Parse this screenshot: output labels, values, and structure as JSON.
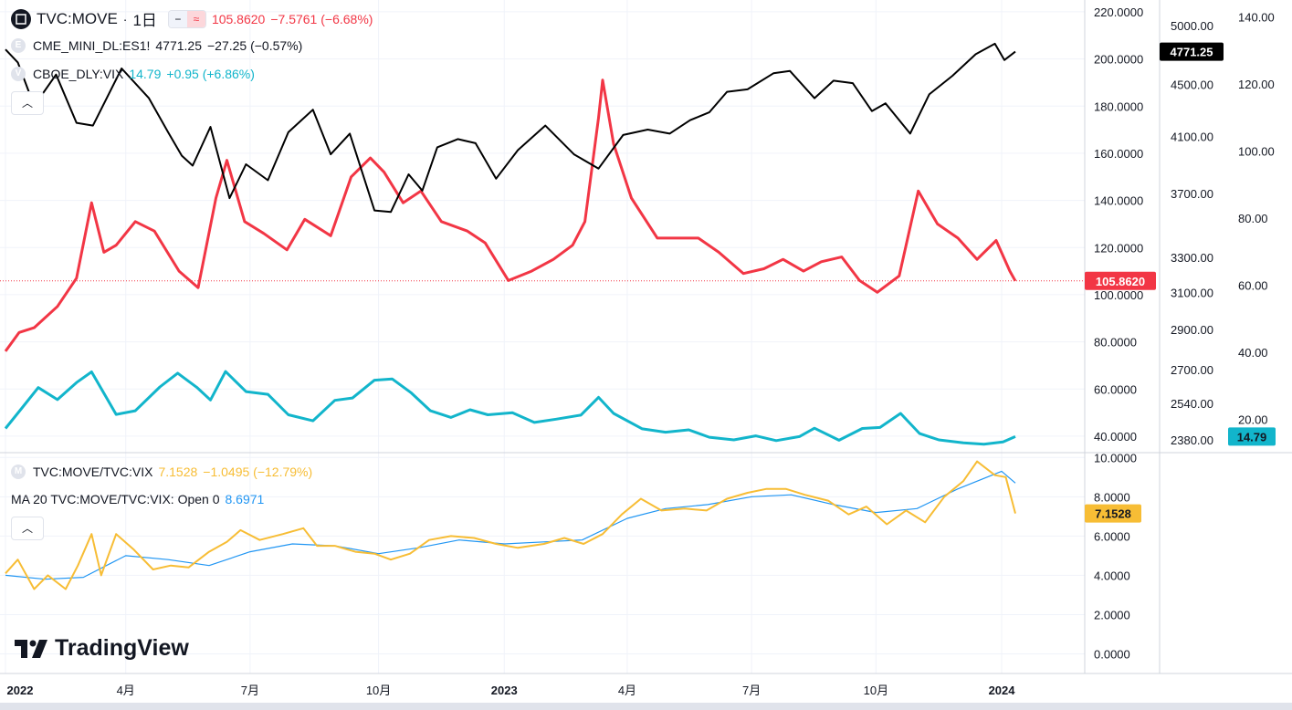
{
  "colors": {
    "move": "#f23645",
    "es": "#000000",
    "vix": "#12b5cb",
    "ratio": "#f7bd35",
    "ma": "#2196f3",
    "grid": "#f0f3fa",
    "axis_text": "#131722"
  },
  "legend": {
    "main_symbol": "TVC:MOVE",
    "interval": "1日",
    "move_value": "105.8620",
    "move_change": "−7.5761 (−6.68%)",
    "es_symbol": "CME_MINI_DL:ES1!",
    "es_value": "4771.25",
    "es_change": "−27.25 (−0.57%)",
    "vix_symbol": "CBOE_DLY:VIX",
    "vix_value": "14.79",
    "vix_change": "+0.95 (+6.86%)",
    "ratio_symbol": "TVC:MOVE/TVC:VIX",
    "ratio_value": "7.1528",
    "ratio_change": "−1.0495 (−12.79%)",
    "ma_label": "MA 20 TVC:MOVE/TVC:VIX: Open 0",
    "ma_value": "8.6971",
    "icon_es": "E",
    "icon_vix": "V",
    "icon_ratio": "M"
  },
  "branding": {
    "logo_text": "TradingView"
  },
  "chart_data": [
    {
      "type": "line",
      "title": "",
      "x_tick_labels": [
        "2022",
        "4月",
        "7月",
        "10月",
        "2023",
        "4月",
        "7月",
        "10月",
        "2024"
      ],
      "x_range": [
        "2022-01-03",
        "2024-01-12"
      ],
      "axes": [
        {
          "id": "move",
          "ticks": [
            "220.0000",
            "200.0000",
            "180.0000",
            "160.0000",
            "140.0000",
            "120.0000",
            "100.0000",
            "80.0000",
            "60.0000",
            "40.0000"
          ],
          "range": [
            33,
            225
          ]
        },
        {
          "id": "es",
          "ticks": [
            "5000.00",
            "4500.00",
            "4100.00",
            "3700.00",
            "3300.00",
            "3100.00",
            "2900.00",
            "2700.00",
            "2540.00",
            "2380.00"
          ],
          "scale": "log"
        },
        {
          "id": "vix",
          "ticks": [
            "140.00",
            "120.00",
            "100.00",
            "80.00",
            "60.00",
            "40.00",
            "20.00"
          ],
          "range": [
            10,
            145
          ]
        }
      ],
      "series": [
        {
          "name": "CME_MINI_DL:ES1!",
          "axis": "es",
          "last": 4771.25,
          "x": [
            "2022-01-03",
            "2022-01-12",
            "2022-01-24",
            "2022-02-09",
            "2022-02-24",
            "2022-03-08",
            "2022-03-29",
            "2022-04-18",
            "2022-05-02",
            "2022-05-12",
            "2022-05-20",
            "2022-06-02",
            "2022-06-16",
            "2022-06-28",
            "2022-07-14",
            "2022-07-29",
            "2022-08-16",
            "2022-08-29",
            "2022-09-12",
            "2022-09-30",
            "2022-10-12",
            "2022-10-25",
            "2022-11-04",
            "2022-11-15",
            "2022-11-30",
            "2022-12-13",
            "2022-12-28",
            "2023-01-13",
            "2023-02-02",
            "2023-02-23",
            "2023-03-13",
            "2023-03-31",
            "2023-04-18",
            "2023-05-04",
            "2023-05-19",
            "2023-06-02",
            "2023-06-15",
            "2023-06-30",
            "2023-07-19",
            "2023-07-31",
            "2023-08-18",
            "2023-09-01",
            "2023-09-15",
            "2023-09-29",
            "2023-10-09",
            "2023-10-27",
            "2023-11-10",
            "2023-11-27",
            "2023-12-14",
            "2023-12-28",
            "2024-01-04",
            "2024-01-12"
          ],
          "values": [
            4790,
            4680,
            4330,
            4580,
            4200,
            4180,
            4630,
            4390,
            4130,
            3960,
            3890,
            4170,
            3670,
            3900,
            3790,
            4130,
            4300,
            3970,
            4120,
            3590,
            3580,
            3830,
            3720,
            4020,
            4080,
            4050,
            3800,
            4000,
            4180,
            3970,
            3870,
            4110,
            4150,
            4120,
            4220,
            4280,
            4440,
            4460,
            4590,
            4610,
            4390,
            4530,
            4510,
            4290,
            4350,
            4120,
            4420,
            4570,
            4750,
            4840,
            4700,
            4771.25
          ]
        },
        {
          "name": "TVC:MOVE",
          "axis": "move",
          "last": 105.862,
          "x": [
            "2022-01-03",
            "2022-01-13",
            "2022-01-24",
            "2022-02-10",
            "2022-02-24",
            "2022-03-07",
            "2022-03-16",
            "2022-03-25",
            "2022-04-08",
            "2022-04-22",
            "2022-05-10",
            "2022-05-24",
            "2022-06-06",
            "2022-06-14",
            "2022-06-27",
            "2022-07-11",
            "2022-07-28",
            "2022-08-10",
            "2022-08-29",
            "2022-09-13",
            "2022-09-27",
            "2022-10-07",
            "2022-10-21",
            "2022-11-03",
            "2022-11-18",
            "2022-12-07",
            "2022-12-20",
            "2023-01-06",
            "2023-01-23",
            "2023-02-08",
            "2023-02-22",
            "2023-03-03",
            "2023-03-13",
            "2023-03-16",
            "2023-03-24",
            "2023-04-06",
            "2023-04-25",
            "2023-05-11",
            "2023-05-25",
            "2023-06-09",
            "2023-06-27",
            "2023-07-12",
            "2023-07-26",
            "2023-08-10",
            "2023-08-23",
            "2023-09-07",
            "2023-09-20",
            "2023-10-03",
            "2023-10-19",
            "2023-11-02",
            "2023-11-16",
            "2023-12-01",
            "2023-12-15",
            "2023-12-29",
            "2024-01-08",
            "2024-01-12"
          ],
          "values": [
            76,
            84,
            86,
            95,
            107,
            139,
            118,
            121,
            131,
            127,
            110,
            103,
            141,
            157,
            131,
            126,
            119,
            132,
            125,
            150,
            158,
            152,
            139,
            144,
            131,
            127,
            122,
            106,
            110,
            115,
            121,
            131,
            175,
            191,
            164,
            141,
            124,
            124,
            124,
            118,
            109,
            111,
            115,
            110,
            114,
            116,
            106,
            101,
            108,
            144,
            130,
            124,
            115,
            123,
            110,
            105.862
          ]
        },
        {
          "name": "CBOE_DLY:VIX",
          "axis": "vix",
          "last": 14.79,
          "x": [
            "2022-01-03",
            "2022-01-14",
            "2022-01-27",
            "2022-02-10",
            "2022-02-24",
            "2022-03-07",
            "2022-03-25",
            "2022-04-08",
            "2022-04-26",
            "2022-05-09",
            "2022-05-23",
            "2022-06-02",
            "2022-06-13",
            "2022-06-28",
            "2022-07-14",
            "2022-07-29",
            "2022-08-16",
            "2022-09-01",
            "2022-09-14",
            "2022-09-30",
            "2022-10-13",
            "2022-10-27",
            "2022-11-10",
            "2022-11-25",
            "2022-12-09",
            "2022-12-22",
            "2023-01-09",
            "2023-01-25",
            "2023-02-10",
            "2023-02-28",
            "2023-03-13",
            "2023-03-24",
            "2023-04-14",
            "2023-05-01",
            "2023-05-18",
            "2023-06-02",
            "2023-06-20",
            "2023-07-06",
            "2023-07-21",
            "2023-08-07",
            "2023-08-18",
            "2023-09-05",
            "2023-09-22",
            "2023-10-05",
            "2023-10-20",
            "2023-11-03",
            "2023-11-17",
            "2023-12-05",
            "2023-12-20",
            "2024-01-03",
            "2024-01-12"
          ],
          "values": [
            17.2,
            22.8,
            29.4,
            25.8,
            30.9,
            34.1,
            21.4,
            22.5,
            29.6,
            33.7,
            29.5,
            25.7,
            34.2,
            28.2,
            27.4,
            21.3,
            19.5,
            25.6,
            26.3,
            31.6,
            32.0,
            27.8,
            22.5,
            20.5,
            22.8,
            21.3,
            21.9,
            19.0,
            20.0,
            21.2,
            26.5,
            21.7,
            17.1,
            16.1,
            16.8,
            14.6,
            13.8,
            15.0,
            13.6,
            14.8,
            17.3,
            13.7,
            17.2,
            17.5,
            21.7,
            15.7,
            13.8,
            12.9,
            12.5,
            13.2,
            14.79
          ]
        }
      ]
    },
    {
      "type": "line",
      "title": "",
      "x_range": [
        "2022-01-03",
        "2024-01-12"
      ],
      "y_ticks": [
        "10.0000",
        "8.0000",
        "6.0000",
        "4.0000",
        "2.0000",
        "0.0000"
      ],
      "ylim": [
        -1,
        10.2
      ],
      "series": [
        {
          "name": "TVC:MOVE/TVC:VIX",
          "last": 7.1528,
          "x": [
            "2022-01-03",
            "2022-01-12",
            "2022-01-24",
            "2022-02-03",
            "2022-02-16",
            "2022-02-25",
            "2022-03-07",
            "2022-03-14",
            "2022-03-25",
            "2022-04-07",
            "2022-04-21",
            "2022-05-04",
            "2022-05-17",
            "2022-06-01",
            "2022-06-14",
            "2022-06-24",
            "2022-07-08",
            "2022-07-25",
            "2022-08-09",
            "2022-08-19",
            "2022-09-01",
            "2022-09-16",
            "2022-09-30",
            "2022-10-12",
            "2022-10-26",
            "2022-11-09",
            "2022-11-25",
            "2022-12-12",
            "2022-12-28",
            "2023-01-13",
            "2023-02-01",
            "2023-02-16",
            "2023-03-02",
            "2023-03-16",
            "2023-03-30",
            "2023-04-13",
            "2023-04-28",
            "2023-05-15",
            "2023-05-31",
            "2023-06-15",
            "2023-06-30",
            "2023-07-14",
            "2023-07-28",
            "2023-08-11",
            "2023-08-28",
            "2023-09-12",
            "2023-09-25",
            "2023-10-10",
            "2023-10-24",
            "2023-11-07",
            "2023-11-21",
            "2023-12-05",
            "2023-12-15",
            "2023-12-28",
            "2024-01-05",
            "2024-01-12"
          ],
          "values": [
            4.1,
            4.8,
            3.3,
            4.0,
            3.3,
            4.5,
            6.1,
            4.0,
            6.1,
            5.3,
            4.3,
            4.5,
            4.4,
            5.2,
            5.7,
            6.3,
            5.8,
            6.1,
            6.4,
            5.5,
            5.5,
            5.2,
            5.1,
            4.8,
            5.1,
            5.8,
            6.0,
            5.9,
            5.6,
            5.4,
            5.6,
            5.9,
            5.6,
            6.1,
            7.1,
            7.9,
            7.3,
            7.4,
            7.3,
            7.9,
            8.2,
            8.4,
            8.4,
            8.1,
            7.8,
            7.1,
            7.5,
            6.6,
            7.3,
            6.7,
            8.0,
            8.8,
            9.8,
            9.1,
            9.0,
            7.1528
          ]
        },
        {
          "name": "MA 20 TVC:MOVE/TVC:VIX",
          "last": 8.6971,
          "x": [
            "2022-01-03",
            "2022-02-01",
            "2022-03-01",
            "2022-04-01",
            "2022-05-02",
            "2022-06-01",
            "2022-07-01",
            "2022-08-01",
            "2022-09-01",
            "2022-10-03",
            "2022-11-01",
            "2022-12-01",
            "2023-01-03",
            "2023-02-01",
            "2023-03-01",
            "2023-04-03",
            "2023-05-01",
            "2023-06-01",
            "2023-07-03",
            "2023-08-01",
            "2023-09-01",
            "2023-10-02",
            "2023-11-01",
            "2023-12-01",
            "2024-01-02",
            "2024-01-12"
          ],
          "values": [
            4.0,
            3.8,
            3.9,
            5.0,
            4.8,
            4.5,
            5.2,
            5.6,
            5.5,
            5.1,
            5.4,
            5.8,
            5.6,
            5.7,
            5.8,
            6.9,
            7.4,
            7.6,
            8.0,
            8.1,
            7.6,
            7.2,
            7.4,
            8.4,
            9.3,
            8.6971
          ]
        }
      ]
    }
  ]
}
